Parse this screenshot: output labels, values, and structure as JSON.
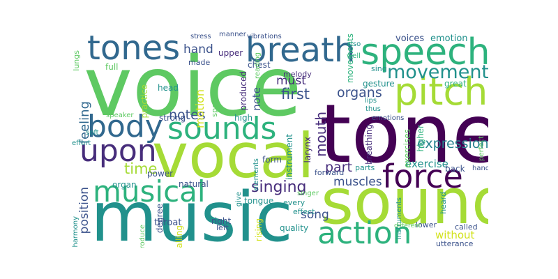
{
  "palette": {
    "green": "#5ec962",
    "lime": "#a5db36",
    "teal": "#21918c",
    "blue": "#31688e",
    "indigo": "#3b528b",
    "purple": "#440154",
    "violet": "#472d7b",
    "seagreen": "#2db27d",
    "cyan": "#26828e",
    "yellow": "#d2e21b"
  },
  "words": [
    {
      "text": "voice",
      "color": "green"
    },
    {
      "text": "music",
      "color": "teal"
    },
    {
      "text": "tone",
      "color": "purple"
    },
    {
      "text": "sound",
      "color": "lime"
    },
    {
      "text": "vocal",
      "color": "lime"
    },
    {
      "text": "speech",
      "color": "seagreen"
    },
    {
      "text": "breath",
      "color": "blue"
    },
    {
      "text": "tones",
      "color": "blue"
    },
    {
      "text": "pitch",
      "color": "lime"
    },
    {
      "text": "sounds",
      "color": "seagreen"
    },
    {
      "text": "body",
      "color": "blue"
    },
    {
      "text": "upon",
      "color": "violet"
    },
    {
      "text": "musical",
      "color": "seagreen"
    },
    {
      "text": "force",
      "color": "purple"
    },
    {
      "text": "action",
      "color": "seagreen"
    },
    {
      "text": "movement",
      "color": "teal"
    },
    {
      "text": "singing",
      "color": "violet"
    },
    {
      "text": "time",
      "color": "lime"
    },
    {
      "text": "expression",
      "color": "cyan"
    },
    {
      "text": "hand",
      "color": "indigo"
    },
    {
      "text": "notes",
      "color": "indigo"
    },
    {
      "text": "organs",
      "color": "indigo"
    },
    {
      "text": "first",
      "color": "indigo"
    },
    {
      "text": "must",
      "color": "violet"
    },
    {
      "text": "muscles",
      "color": "indigo"
    },
    {
      "text": "part",
      "color": "violet"
    },
    {
      "text": "song",
      "color": "indigo"
    },
    {
      "text": "mouth",
      "color": "violet"
    },
    {
      "text": "exercise",
      "color": "teal"
    },
    {
      "text": "speaking",
      "color": "violet"
    },
    {
      "text": "without",
      "color": "yellow"
    },
    {
      "text": "feeling",
      "color": "blue"
    },
    {
      "text": "position",
      "color": "indigo"
    },
    {
      "text": "motion",
      "color": "yellow"
    },
    {
      "text": "note",
      "color": "indigo"
    },
    {
      "text": "voices",
      "color": "indigo"
    },
    {
      "text": "emotion",
      "color": "teal"
    },
    {
      "text": "movements",
      "color": "seagreen"
    },
    {
      "text": "lungs",
      "color": "green"
    },
    {
      "text": "full",
      "color": "green"
    },
    {
      "text": "made",
      "color": "indigo"
    },
    {
      "text": "chest",
      "color": "indigo"
    },
    {
      "text": "upper",
      "color": "violet"
    },
    {
      "text": "melody",
      "color": "violet"
    },
    {
      "text": "produced",
      "color": "violet"
    },
    {
      "text": "reading",
      "color": "green"
    },
    {
      "text": "head",
      "color": "teal"
    },
    {
      "text": "speak",
      "color": "green"
    },
    {
      "text": "gesture",
      "color": "teal"
    },
    {
      "text": "great",
      "color": "seagreen"
    },
    {
      "text": "sing",
      "color": "teal"
    },
    {
      "text": "practice",
      "color": "lime"
    },
    {
      "text": "strong",
      "color": "indigo"
    },
    {
      "text": "high",
      "color": "teal"
    },
    {
      "text": "throat",
      "color": "indigo"
    },
    {
      "text": "natural",
      "color": "indigo"
    },
    {
      "text": "power",
      "color": "indigo"
    },
    {
      "text": "organ",
      "color": "teal"
    },
    {
      "text": "form",
      "color": "indigo"
    },
    {
      "text": "instrument",
      "color": "teal"
    },
    {
      "text": "larynx",
      "color": "violet"
    },
    {
      "text": "breathing",
      "color": "violet"
    },
    {
      "text": "parts",
      "color": "teal"
    },
    {
      "text": "exercises",
      "color": "green"
    },
    {
      "text": "higher",
      "color": "seagreen"
    },
    {
      "text": "back",
      "color": "indigo"
    },
    {
      "text": "hands",
      "color": "indigo"
    },
    {
      "text": "heard",
      "color": "teal"
    },
    {
      "text": "lower",
      "color": "indigo"
    },
    {
      "text": "called",
      "color": "indigo"
    },
    {
      "text": "utterance",
      "color": "indigo"
    },
    {
      "text": "effect",
      "color": "teal"
    },
    {
      "text": "quality",
      "color": "teal"
    },
    {
      "text": "every",
      "color": "teal"
    },
    {
      "text": "tongue",
      "color": "teal"
    },
    {
      "text": "singer",
      "color": "green"
    },
    {
      "text": "forward",
      "color": "indigo"
    },
    {
      "text": "right",
      "color": "indigo"
    },
    {
      "text": "left",
      "color": "indigo"
    },
    {
      "text": "rising",
      "color": "yellow"
    },
    {
      "text": "falling",
      "color": "yellow"
    },
    {
      "text": "degree",
      "color": "indigo"
    },
    {
      "text": "harmony",
      "color": "teal"
    },
    {
      "text": "soft",
      "color": "teal"
    },
    {
      "text": "effort",
      "color": "teal"
    },
    {
      "text": "speaker",
      "color": "green"
    },
    {
      "text": "produce",
      "color": "green"
    },
    {
      "text": "stress",
      "color": "indigo"
    },
    {
      "text": "manner",
      "color": "indigo"
    },
    {
      "text": "vibrations",
      "color": "indigo"
    },
    {
      "text": "also",
      "color": "teal"
    },
    {
      "text": "well",
      "color": "seagreen"
    },
    {
      "text": "lips",
      "color": "teal"
    },
    {
      "text": "thus",
      "color": "teal"
    },
    {
      "text": "emotions",
      "color": "indigo"
    },
    {
      "text": "perfect",
      "color": "green"
    },
    {
      "text": "elements",
      "color": "teal"
    },
    {
      "text": "give",
      "color": "teal"
    },
    {
      "text": "instruments",
      "color": "teal"
    },
    {
      "text": "different",
      "color": "green"
    }
  ]
}
